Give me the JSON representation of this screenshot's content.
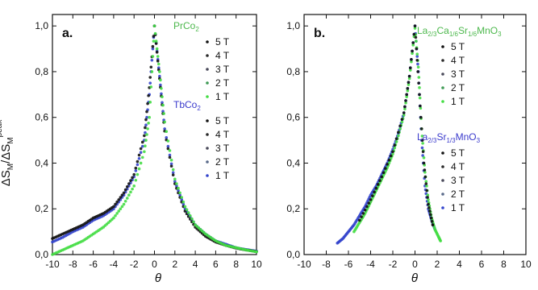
{
  "figure": {
    "y_label_main": "ΔS",
    "y_label_sub1": "M",
    "y_label_mid": "/ΔS",
    "y_label_sub2": "M",
    "y_label_sup": "peak",
    "x_label": "θ"
  },
  "chart_data": [
    {
      "type": "scatter",
      "panel_label": "a.",
      "xlim": [
        -10,
        10
      ],
      "ylim": [
        0,
        1.05
      ],
      "x_ticks": [
        "-10",
        "-8",
        "-6",
        "-4",
        "-2",
        "0",
        "2",
        "4",
        "6",
        "8",
        "10"
      ],
      "y_ticks": [
        "0,0",
        "0,2",
        "0,4",
        "0,6",
        "0,8",
        "1,0"
      ],
      "legend_groups": [
        {
          "title": "PrCo",
          "title_sub": "2",
          "color": "#4cb84c",
          "entries": [
            {
              "label": "5 T",
              "color": "#111111"
            },
            {
              "label": "4 T",
              "color": "#2a2a2a"
            },
            {
              "label": "3 T",
              "color": "#4a4a5a"
            },
            {
              "label": "2 T",
              "color": "#3f9a55"
            },
            {
              "label": "1 T",
              "color": "#44dd44"
            }
          ]
        },
        {
          "title": "TbCo",
          "title_sub": "2",
          "color": "#3a3acc",
          "entries": [
            {
              "label": "5 T",
              "color": "#111111"
            },
            {
              "label": "4 T",
              "color": "#2a2a2a"
            },
            {
              "label": "3 T",
              "color": "#4a4a5a"
            },
            {
              "label": "2 T",
              "color": "#5a6a8a"
            },
            {
              "label": "1 T",
              "color": "#3344cc"
            }
          ]
        }
      ],
      "series": [
        {
          "color": "#3344cc",
          "points": [
            [
              -10,
              0.055
            ],
            [
              -9,
              0.075
            ],
            [
              -8,
              0.1
            ],
            [
              -7,
              0.12
            ],
            [
              -6,
              0.15
            ],
            [
              -5,
              0.17
            ],
            [
              -4,
              0.2
            ],
            [
              -3,
              0.26
            ],
            [
              -2,
              0.34
            ],
            [
              -1,
              0.5
            ],
            [
              -0.5,
              0.7
            ],
            [
              0,
              1.0
            ],
            [
              0.5,
              0.78
            ],
            [
              1,
              0.55
            ],
            [
              2,
              0.32
            ],
            [
              3,
              0.2
            ],
            [
              4,
              0.13
            ],
            [
              5,
              0.09
            ],
            [
              6,
              0.06
            ],
            [
              7,
              0.045
            ],
            [
              8,
              0.03
            ],
            [
              9,
              0.022
            ],
            [
              10,
              0.015
            ]
          ]
        },
        {
          "color": "#111111",
          "points": [
            [
              -10,
              0.07
            ],
            [
              -9,
              0.09
            ],
            [
              -8,
              0.11
            ],
            [
              -7,
              0.13
            ],
            [
              -6,
              0.16
            ],
            [
              -5,
              0.18
            ],
            [
              -4,
              0.21
            ],
            [
              -3,
              0.27
            ],
            [
              -2,
              0.35
            ],
            [
              -1,
              0.52
            ],
            [
              -0.5,
              0.73
            ],
            [
              0,
              1.0
            ],
            [
              0.5,
              0.77
            ],
            [
              1,
              0.54
            ],
            [
              2,
              0.31
            ],
            [
              3,
              0.19
            ],
            [
              4,
              0.12
            ],
            [
              5,
              0.08
            ],
            [
              6,
              0.055
            ],
            [
              7,
              0.04
            ],
            [
              8,
              0.028
            ],
            [
              9,
              0.02
            ],
            [
              10,
              0.013
            ]
          ]
        },
        {
          "color": "#44dd44",
          "points": [
            [
              -10,
              0.0
            ],
            [
              -9,
              0.02
            ],
            [
              -8,
              0.04
            ],
            [
              -7,
              0.06
            ],
            [
              -6,
              0.09
            ],
            [
              -5,
              0.12
            ],
            [
              -4,
              0.16
            ],
            [
              -3,
              0.22
            ],
            [
              -2,
              0.3
            ],
            [
              -1,
              0.45
            ],
            [
              -0.5,
              0.6
            ],
            [
              0,
              1.0
            ],
            [
              0.5,
              0.8
            ],
            [
              1,
              0.58
            ],
            [
              2,
              0.33
            ],
            [
              3,
              0.21
            ],
            [
              4,
              0.13
            ],
            [
              5,
              0.09
            ],
            [
              6,
              0.06
            ],
            [
              7,
              0.04
            ],
            [
              8,
              0.03
            ],
            [
              9,
              0.02
            ],
            [
              10,
              0.012
            ]
          ]
        }
      ]
    },
    {
      "type": "scatter",
      "panel_label": "b.",
      "xlim": [
        -10,
        10
      ],
      "ylim": [
        0,
        1.05
      ],
      "x_ticks": [
        "-10",
        "-8",
        "-6",
        "-4",
        "-2",
        "0",
        "2",
        "4",
        "6",
        "8",
        "10"
      ],
      "y_ticks": [
        "0,0",
        "0,2",
        "0,4",
        "0,6",
        "0,8",
        "1,0"
      ],
      "legend_groups": [
        {
          "title": "La",
          "title_parts": [
            "La",
            "2/3",
            "Ca",
            "1/6",
            "Sr",
            "1/6",
            "MnO",
            "3"
          ],
          "color": "#4cb84c",
          "entries": [
            {
              "label": "5 T",
              "color": "#111111"
            },
            {
              "label": "4 T",
              "color": "#2a2a2a"
            },
            {
              "label": "3 T",
              "color": "#4a4a5a"
            },
            {
              "label": "2 T",
              "color": "#3f9a55"
            },
            {
              "label": "1 T",
              "color": "#44dd44"
            }
          ]
        },
        {
          "title": "La",
          "title_parts": [
            "La",
            "2/3",
            "Sr",
            "1/3",
            "MnO",
            "3"
          ],
          "color": "#3a3acc",
          "entries": [
            {
              "label": "5 T",
              "color": "#111111"
            },
            {
              "label": "4 T",
              "color": "#2a2a2a"
            },
            {
              "label": "3 T",
              "color": "#4a4a5a"
            },
            {
              "label": "2 T",
              "color": "#5a6a8a"
            },
            {
              "label": "1 T",
              "color": "#3344cc"
            }
          ]
        }
      ],
      "series": [
        {
          "color": "#3344cc",
          "points": [
            [
              -7,
              0.05
            ],
            [
              -6.5,
              0.07
            ],
            [
              -6,
              0.1
            ],
            [
              -5.5,
              0.13
            ],
            [
              -5,
              0.17
            ],
            [
              -4.5,
              0.21
            ],
            [
              -4,
              0.26
            ],
            [
              -3.5,
              0.3
            ],
            [
              -3,
              0.35
            ],
            [
              -2.5,
              0.4
            ],
            [
              -2,
              0.46
            ],
            [
              -1.5,
              0.53
            ],
            [
              -1,
              0.62
            ],
            [
              -0.5,
              0.78
            ],
            [
              0,
              1.0
            ],
            [
              0.3,
              0.8
            ],
            [
              0.6,
              0.5
            ],
            [
              0.9,
              0.3
            ],
            [
              1.2,
              0.2
            ],
            [
              1.5,
              0.15
            ],
            [
              1.8,
              0.11
            ]
          ]
        },
        {
          "color": "#44dd44",
          "points": [
            [
              -5.5,
              0.1
            ],
            [
              -5,
              0.14
            ],
            [
              -4.5,
              0.18
            ],
            [
              -4,
              0.23
            ],
            [
              -3.5,
              0.28
            ],
            [
              -3,
              0.33
            ],
            [
              -2.5,
              0.38
            ],
            [
              -2,
              0.44
            ],
            [
              -1.5,
              0.52
            ],
            [
              -1,
              0.61
            ],
            [
              -0.5,
              0.77
            ],
            [
              0,
              0.99
            ],
            [
              0.3,
              0.82
            ],
            [
              0.6,
              0.55
            ],
            [
              0.9,
              0.36
            ],
            [
              1.2,
              0.24
            ],
            [
              1.5,
              0.16
            ],
            [
              1.8,
              0.11
            ],
            [
              2.1,
              0.08
            ],
            [
              2.3,
              0.06
            ]
          ]
        },
        {
          "color": "#111111",
          "points": [
            [
              -5,
              0.15
            ],
            [
              -4,
              0.24
            ],
            [
              -3,
              0.34
            ],
            [
              -2,
              0.45
            ],
            [
              -1,
              0.62
            ],
            [
              -0.5,
              0.78
            ],
            [
              0,
              1.0
            ],
            [
              0.4,
              0.7
            ],
            [
              0.8,
              0.4
            ],
            [
              1.2,
              0.22
            ],
            [
              1.6,
              0.13
            ]
          ]
        }
      ]
    }
  ]
}
